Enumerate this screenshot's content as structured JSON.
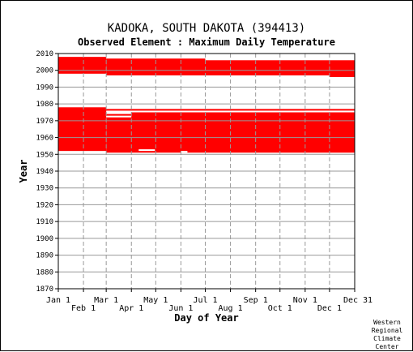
{
  "chart_data": {
    "type": "heatmap",
    "title": "KADOKA, SOUTH DAKOTA   (394413)",
    "subtitle": "Observed Element : Maximum Daily Temperature",
    "xlabel": "Day of Year",
    "ylabel": "Year",
    "xlim": [
      1,
      366
    ],
    "ylim": [
      1870,
      2010
    ],
    "y_ticks": [
      1870,
      1880,
      1890,
      1900,
      1910,
      1920,
      1930,
      1940,
      1950,
      1960,
      1970,
      1980,
      1990,
      2000,
      2010
    ],
    "x_ticks_upper": [
      {
        "label": "Jan 1",
        "day": 1
      },
      {
        "label": "Mar 1",
        "day": 60
      },
      {
        "label": "May 1",
        "day": 121
      },
      {
        "label": "Jul 1",
        "day": 182
      },
      {
        "label": "Sep 1",
        "day": 244
      },
      {
        "label": "Nov 1",
        "day": 305
      },
      {
        "label": "Dec 31",
        "day": 366
      }
    ],
    "x_ticks_lower": [
      {
        "label": "Feb 1",
        "day": 32
      },
      {
        "label": "Apr 1",
        "day": 91
      },
      {
        "label": "Jun 1",
        "day": 152
      },
      {
        "label": "Aug 1",
        "day": 213
      },
      {
        "label": "Oct 1",
        "day": 274
      },
      {
        "label": "Dec 1",
        "day": 335
      }
    ],
    "grid": true,
    "data_color": "#ff0000",
    "data_blocks": [
      {
        "day_start": 1,
        "day_end": 60,
        "year_start": 1952,
        "year_end": 1978
      },
      {
        "day_start": 60,
        "day_end": 366,
        "year_start": 1951,
        "year_end": 1975
      },
      {
        "day_start": 1,
        "day_end": 366,
        "year_start": 1976,
        "year_end": 1977
      },
      {
        "day_start": 1,
        "day_end": 60,
        "year_start": 1998,
        "year_end": 2008
      },
      {
        "day_start": 60,
        "day_end": 182,
        "year_start": 1997,
        "year_end": 2007
      },
      {
        "day_start": 182,
        "day_end": 335,
        "year_start": 1997,
        "year_end": 2006
      },
      {
        "day_start": 335,
        "day_end": 366,
        "year_start": 1996,
        "year_end": 2006
      }
    ],
    "data_gaps": [
      {
        "day_start": 60,
        "day_end": 91,
        "year_start": 1974,
        "year_end": 1975
      },
      {
        "day_start": 60,
        "day_end": 91,
        "year_start": 1972,
        "year_end": 1973
      },
      {
        "day_start": 100,
        "day_end": 120,
        "year_start": 1952,
        "year_end": 1953
      },
      {
        "day_start": 152,
        "day_end": 160,
        "year_start": 1951,
        "year_end": 1952
      },
      {
        "day_start": 305,
        "day_end": 366,
        "year_start": 1975,
        "year_end": 1976
      }
    ]
  },
  "credit": [
    "Western",
    "Regional",
    "Climate",
    "Center"
  ],
  "colors": {
    "data": "#ff0000",
    "grid": "#999999",
    "axis": "#000000"
  }
}
